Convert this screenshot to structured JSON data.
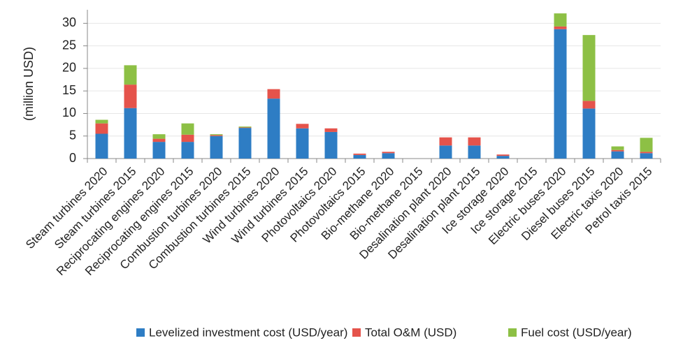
{
  "chart_data": {
    "type": "stacked_bar",
    "y_label": "(million USD)",
    "categories": [
      "Steam turbines 2020",
      "Steam turbines 2015",
      "Reciprocating engines 2020",
      "Reciprocating engines 2015",
      "Combustion turbines 2020",
      "Combustion turbines 2015",
      "Wind turbines 2020",
      "Wind turbines 2015",
      "Photovoltaics 2020",
      "Photovoltaics 2015",
      "Bio-methane 2020",
      "Bio-methane 2015",
      "Desalination plant 2020",
      "Desalination plant 2015",
      "Ice storage 2020",
      "Ice storage 2015",
      "Electric buses 2020",
      "Diesel buses 2015",
      "Electric taxis 2020",
      "Petrol taxis 2015"
    ],
    "series": [
      {
        "name": "Levelized investment cost (USD/year)",
        "color": "#2e7dc4",
        "values": [
          5.5,
          11.2,
          3.7,
          3.7,
          5.0,
          6.8,
          13.3,
          6.7,
          5.9,
          0.8,
          1.2,
          0,
          2.9,
          2.9,
          0.6,
          0,
          28.7,
          11.1,
          1.6,
          1.2
        ]
      },
      {
        "name": "Total O&M (USD)",
        "color": "#e5534b",
        "values": [
          2.3,
          5.2,
          0.7,
          1.6,
          0.2,
          0.1,
          2.1,
          1.0,
          0.8,
          0.3,
          0.3,
          0,
          1.8,
          1.8,
          0.3,
          0,
          0.6,
          1.7,
          0.3,
          0.3
        ]
      },
      {
        "name": "Fuel cost (USD/year)",
        "color": "#8dc045",
        "values": [
          0.8,
          4.3,
          1.0,
          2.5,
          0.2,
          0.2,
          0,
          0,
          0,
          0,
          0,
          0,
          0,
          0,
          0,
          0,
          2.9,
          14.6,
          0.8,
          3.1
        ]
      }
    ],
    "ylim": [
      0,
      33
    ],
    "yticks": [
      0,
      5,
      10,
      15,
      20,
      25,
      30
    ],
    "grid": true,
    "legend": "bottom"
  }
}
